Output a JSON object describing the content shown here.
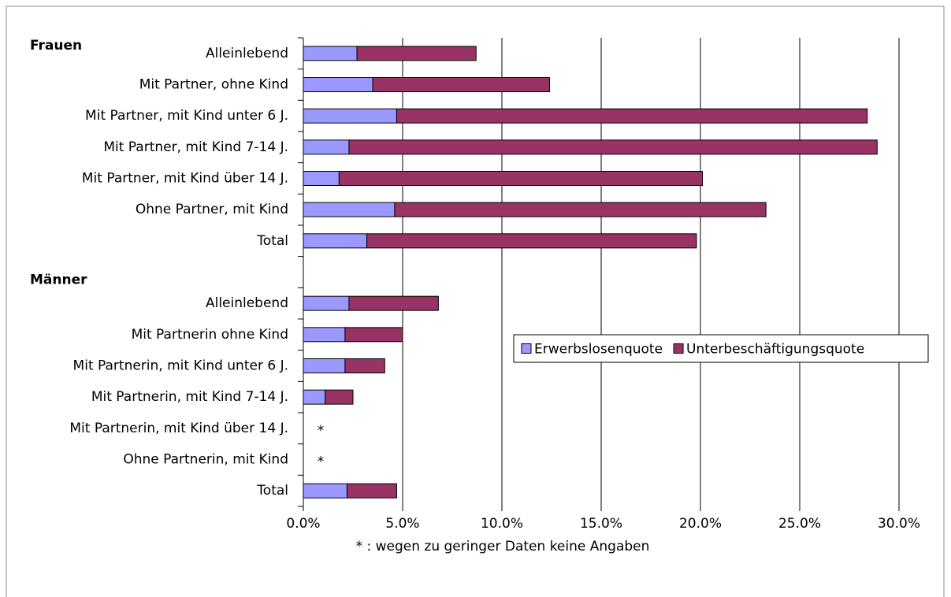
{
  "chart_data": {
    "type": "bar",
    "orientation": "horizontal",
    "stacked": true,
    "groups": [
      "Frauen",
      "Männer"
    ],
    "categories": [
      "Alleinlebend",
      "Mit Partner, ohne Kind",
      "Mit Partner, mit Kind unter 6 J.",
      "Mit Partner, mit Kind 7-14 J.",
      "Mit Partner, mit Kind über 14 J.",
      "Ohne Partner, mit Kind",
      "Total",
      null,
      "Alleinlebend",
      "Mit Partnerin ohne Kind",
      "Mit Partnerin, mit Kind unter 6 J.",
      "Mit Partnerin, mit Kind 7-14 J.",
      "Mit Partnerin, mit Kind über 14 J.",
      "Ohne Partnerin, mit Kind",
      "Total"
    ],
    "series": [
      {
        "name": "Erwerbslosenquote",
        "color": "#9999ff",
        "values": [
          2.7,
          3.5,
          4.7,
          2.3,
          1.8,
          4.6,
          3.2,
          null,
          2.3,
          2.1,
          2.1,
          1.1,
          null,
          null,
          2.2
        ]
      },
      {
        "name": "Unterbeschäftigungsquote",
        "color": "#993366",
        "values": [
          6.0,
          8.9,
          23.7,
          26.6,
          18.3,
          18.7,
          16.6,
          null,
          4.5,
          2.9,
          2.0,
          1.4,
          null,
          null,
          2.5
        ]
      }
    ],
    "missing_label": "*",
    "note": "* : wegen zu geringer Daten keine Angaben",
    "xlim": [
      0,
      30
    ],
    "xticks": [
      {
        "value": 0,
        "label": "0.0%"
      },
      {
        "value": 5,
        "label": "5.0%"
      },
      {
        "value": 10,
        "label": "10.0%"
      },
      {
        "value": 15,
        "label": "15.0%"
      },
      {
        "value": 20,
        "label": "20.0%"
      },
      {
        "value": 25,
        "label": "25.0%"
      },
      {
        "value": 30,
        "label": "30.0%"
      }
    ],
    "grid": true
  }
}
